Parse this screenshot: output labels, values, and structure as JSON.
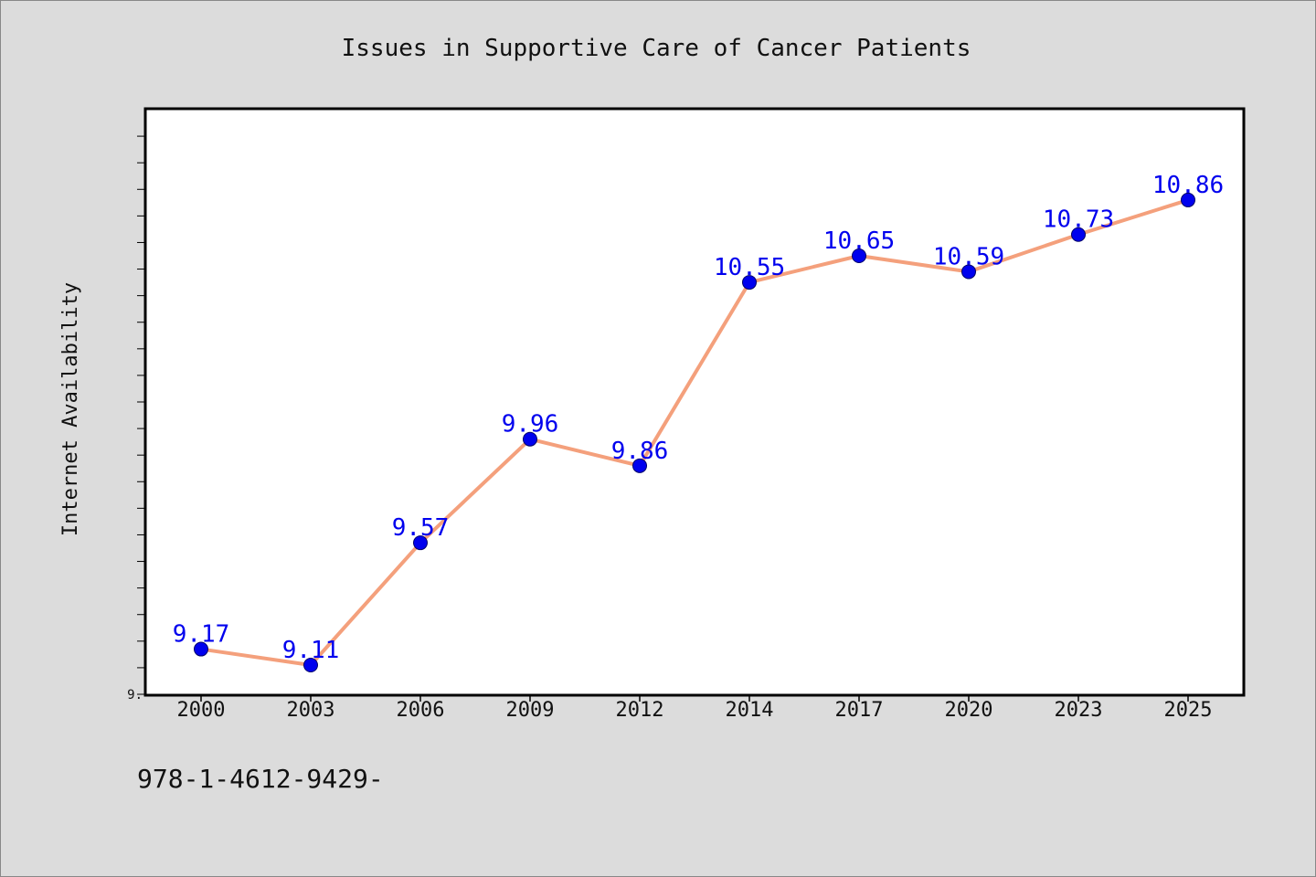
{
  "chart_data": {
    "type": "line",
    "title": "Issues in Supportive Care of Cancer Patients",
    "xlabel": "",
    "ylabel": "Internet Availability",
    "categories": [
      "2000",
      "2003",
      "2006",
      "2009",
      "2012",
      "2014",
      "2017",
      "2020",
      "2023",
      "2025"
    ],
    "series": [
      {
        "values": [
          9.17,
          9.11,
          9.57,
          9.96,
          9.86,
          10.55,
          10.65,
          10.59,
          10.73,
          10.86
        ]
      }
    ],
    "ylim": [
      9.0,
      11.2
    ],
    "ytick_labels": [
      "9."
    ],
    "grid": false,
    "colors": {
      "line": "#f4a07c",
      "marker": "#0000ee",
      "label": "#0000ee",
      "frame": "#000000",
      "plot_bg": "#ffffff",
      "figure_bg": "#dcdcdc"
    }
  },
  "footnote": "978-1-4612-9429-"
}
